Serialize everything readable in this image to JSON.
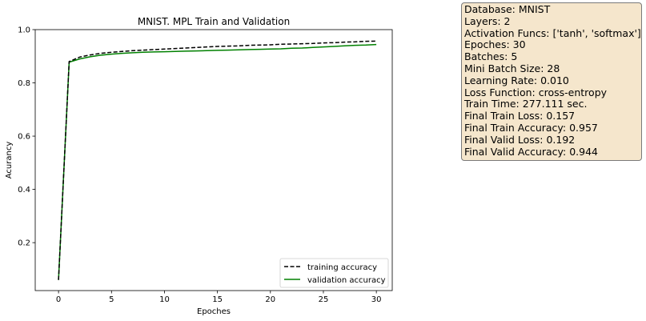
{
  "chart_data": {
    "type": "line",
    "title": "MNIST. MPL Train and Validation",
    "xlabel": "Epoches",
    "ylabel": "Acurancy",
    "xlim": [
      -2.2,
      31.5
    ],
    "ylim": [
      0.02,
      1.0
    ],
    "xticks": [
      0,
      5,
      10,
      15,
      20,
      25,
      30
    ],
    "yticks": [
      0.2,
      0.4,
      0.6,
      0.8,
      1.0
    ],
    "xtick_labels": [
      "0",
      "5",
      "10",
      "15",
      "20",
      "25",
      "30"
    ],
    "ytick_labels": [
      "0.2",
      "0.4",
      "0.6",
      "0.8",
      "1.0"
    ],
    "legend_position": "lower-right",
    "grid": false,
    "series": [
      {
        "name": "training accuracy",
        "color": "#000000",
        "style": "dashed",
        "x": [
          0,
          1,
          2,
          3,
          4,
          5,
          6,
          7,
          8,
          9,
          10,
          11,
          12,
          13,
          14,
          15,
          16,
          17,
          18,
          19,
          20,
          21,
          22,
          23,
          24,
          25,
          26,
          27,
          28,
          29,
          30
        ],
        "values": [
          0.06,
          0.88,
          0.897,
          0.905,
          0.911,
          0.915,
          0.918,
          0.921,
          0.923,
          0.925,
          0.927,
          0.929,
          0.931,
          0.933,
          0.935,
          0.937,
          0.938,
          0.939,
          0.941,
          0.942,
          0.943,
          0.945,
          0.946,
          0.947,
          0.948,
          0.95,
          0.951,
          0.953,
          0.954,
          0.956,
          0.957
        ]
      },
      {
        "name": "validation accuracy",
        "color": "#008000",
        "style": "solid",
        "x": [
          0,
          1,
          2,
          3,
          4,
          5,
          6,
          7,
          8,
          9,
          10,
          11,
          12,
          13,
          14,
          15,
          16,
          17,
          18,
          19,
          20,
          21,
          22,
          23,
          24,
          25,
          26,
          27,
          28,
          29,
          30
        ],
        "values": [
          0.06,
          0.878,
          0.89,
          0.898,
          0.904,
          0.908,
          0.911,
          0.913,
          0.915,
          0.916,
          0.917,
          0.918,
          0.919,
          0.92,
          0.921,
          0.922,
          0.923,
          0.924,
          0.925,
          0.926,
          0.927,
          0.928,
          0.93,
          0.931,
          0.933,
          0.935,
          0.937,
          0.939,
          0.941,
          0.942,
          0.944
        ]
      }
    ]
  },
  "info_box": {
    "lines": [
      "Database: MNIST",
      "Layers: 2",
      "Activation Funcs: ['tanh', 'softmax']",
      "Epoches: 30",
      "Batches: 5",
      "Mini Batch Size: 28",
      "Learning Rate: 0.010",
      "Loss Function: cross-entropy",
      "Train Time: 277.111 sec.",
      "Final Train Loss: 0.157",
      "Final Train Accuracy: 0.957",
      "Final Valid Loss: 0.192",
      "Final Valid Accuracy: 0.944"
    ],
    "background": "#f5e6cc"
  }
}
